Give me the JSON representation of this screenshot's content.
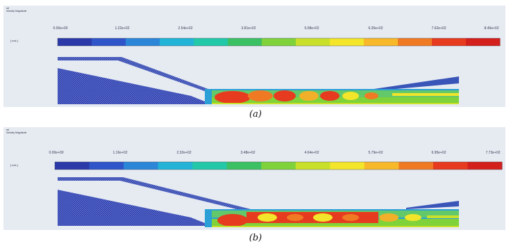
{
  "panels": [
    {
      "id": "a",
      "header_line1": "ref",
      "header_line2": "Velocity Magnitude",
      "unit": "[ m/s ]",
      "ticks": [
        "0.00e+00",
        "1.22e+02",
        "2.54e+02",
        "3.81e+02",
        "5.08e+02",
        "6.35e+02",
        "7.62e+02",
        "8.46e+02"
      ],
      "caption": "(a)"
    },
    {
      "id": "b",
      "header_line1": "ref",
      "header_line2": "Velocity Magnitude",
      "unit": "[ m/s ]",
      "ticks": [
        "0.00e+00",
        "1.16e+02",
        "2.32e+02",
        "3.48e+02",
        "4.64e+02",
        "5.79e+02",
        "6.95e+02",
        "7.73e+02"
      ],
      "caption": "(b)"
    }
  ],
  "colorbar_colors": [
    "#2b3aa8",
    "#2f55c8",
    "#2c86d8",
    "#22b3d6",
    "#22c8a8",
    "#3cc064",
    "#7fd23a",
    "#c9e02a",
    "#f2e52a",
    "#f7b82a",
    "#f07a24",
    "#e63b1e",
    "#d4201c"
  ]
}
